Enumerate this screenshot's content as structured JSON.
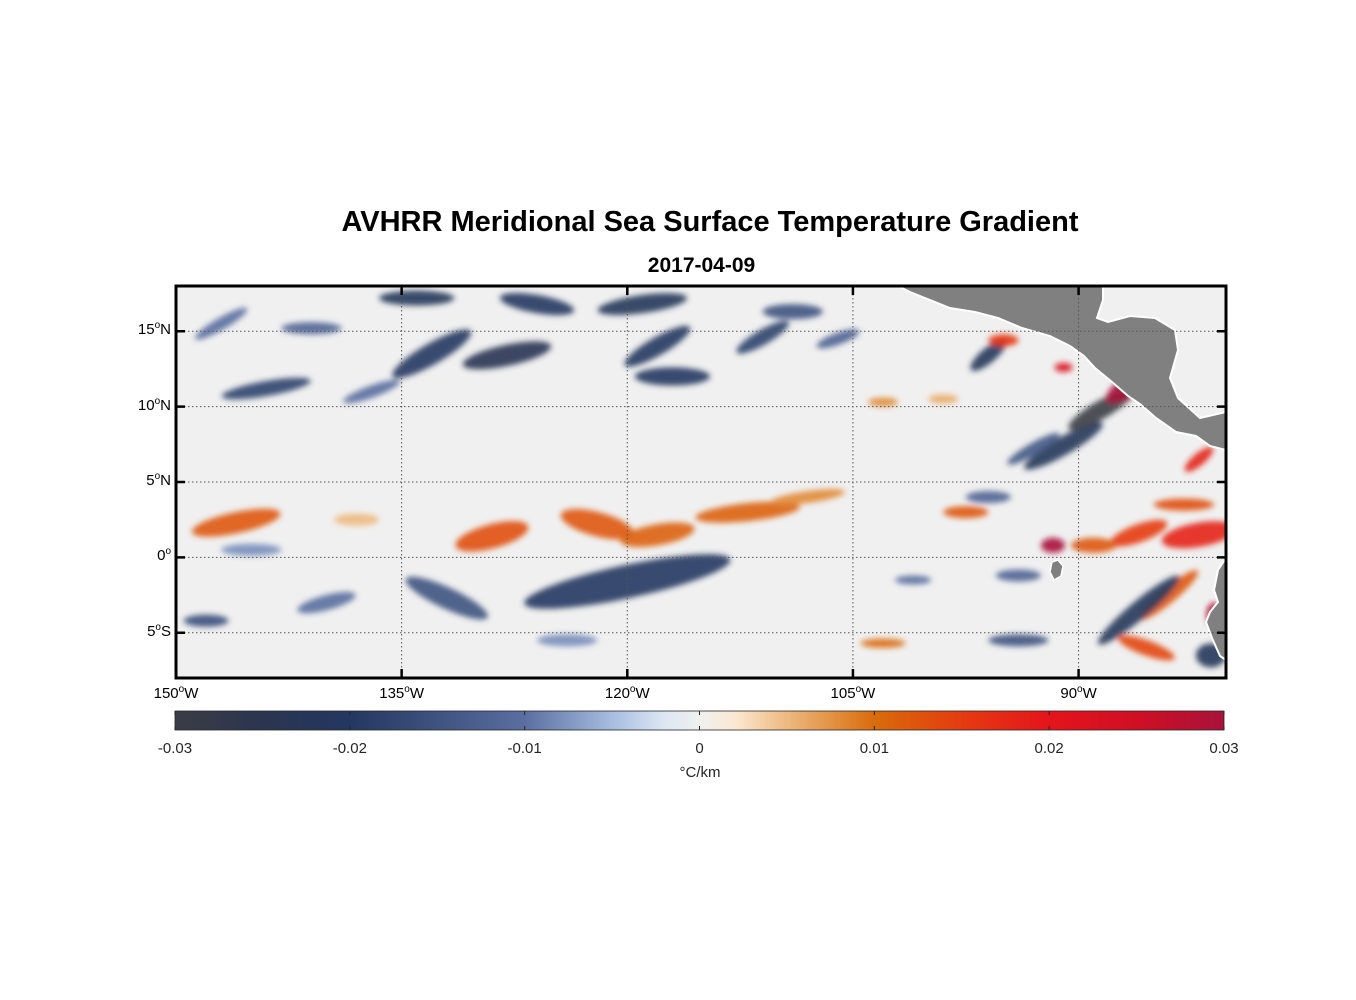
{
  "figure": {
    "title": "AVHRR Meridional Sea Surface Temperature Gradient",
    "subtitle": "2017-04-09"
  },
  "map": {
    "lat_range": [
      -8,
      18
    ],
    "lon_range": [
      -150,
      -80.2
    ],
    "lat_ticks": [
      {
        "value": 15,
        "num": "15",
        "hemi": "N"
      },
      {
        "value": 10,
        "num": "10",
        "hemi": "N"
      },
      {
        "value": 5,
        "num": "5",
        "hemi": "N"
      },
      {
        "value": 0,
        "num": "0",
        "hemi": ""
      },
      {
        "value": -5,
        "num": "5",
        "hemi": "S"
      }
    ],
    "lon_ticks": [
      {
        "value": -150,
        "num": "150",
        "hemi": "W"
      },
      {
        "value": -135,
        "num": "135",
        "hemi": "W"
      },
      {
        "value": -120,
        "num": "120",
        "hemi": "W"
      },
      {
        "value": -105,
        "num": "105",
        "hemi": "W"
      },
      {
        "value": -90,
        "num": "90",
        "hemi": "W"
      }
    ],
    "grid": "dotted",
    "land_color": "#808080",
    "gradient_features": [
      {
        "lon": -146,
        "lat": 2.3,
        "rx": 3,
        "ry": 0.7,
        "angle": -12,
        "value": 0.012
      },
      {
        "lon": -138,
        "lat": 2.5,
        "rx": 1.5,
        "ry": 0.4,
        "angle": 0,
        "value": 0.005
      },
      {
        "lon": -129,
        "lat": 1.4,
        "rx": 2.5,
        "ry": 0.8,
        "angle": -15,
        "value": 0.013
      },
      {
        "lon": -122,
        "lat": 2.2,
        "rx": 2.5,
        "ry": 0.8,
        "angle": 15,
        "value": 0.012
      },
      {
        "lon": -118,
        "lat": 1.5,
        "rx": 2.5,
        "ry": 0.7,
        "angle": -10,
        "value": 0.011
      },
      {
        "lon": -112,
        "lat": 3.0,
        "rx": 3.5,
        "ry": 0.6,
        "angle": -6,
        "value": 0.011
      },
      {
        "lon": -108,
        "lat": 4.0,
        "rx": 2.5,
        "ry": 0.4,
        "angle": -8,
        "value": 0.008
      },
      {
        "lon": -120,
        "lat": -1.6,
        "rx": 7,
        "ry": 1.1,
        "angle": -12,
        "value": -0.02
      },
      {
        "lon": -132,
        "lat": -2.7,
        "rx": 3,
        "ry": 0.7,
        "angle": 25,
        "value": -0.015
      },
      {
        "lon": -145,
        "lat": 0.5,
        "rx": 2,
        "ry": 0.4,
        "angle": 0,
        "value": -0.008
      },
      {
        "lon": -148,
        "lat": -4.2,
        "rx": 1.5,
        "ry": 0.4,
        "angle": 0,
        "value": -0.016
      },
      {
        "lon": -140,
        "lat": -3.0,
        "rx": 2,
        "ry": 0.5,
        "angle": -15,
        "value": -0.01
      },
      {
        "lon": -124,
        "lat": -5.5,
        "rx": 2,
        "ry": 0.4,
        "angle": 0,
        "value": -0.008
      },
      {
        "lon": -133,
        "lat": 13.5,
        "rx": 3,
        "ry": 0.7,
        "angle": -30,
        "value": -0.02
      },
      {
        "lon": -128,
        "lat": 13.4,
        "rx": 3,
        "ry": 0.7,
        "angle": -12,
        "value": -0.024
      },
      {
        "lon": -126,
        "lat": 16.8,
        "rx": 2.5,
        "ry": 0.6,
        "angle": 10,
        "value": -0.02
      },
      {
        "lon": -134,
        "lat": 17.2,
        "rx": 2.5,
        "ry": 0.5,
        "angle": 0,
        "value": -0.022
      },
      {
        "lon": -119,
        "lat": 16.8,
        "rx": 3,
        "ry": 0.6,
        "angle": -8,
        "value": -0.022
      },
      {
        "lon": -118,
        "lat": 14.0,
        "rx": 2.5,
        "ry": 0.6,
        "angle": -30,
        "value": -0.02
      },
      {
        "lon": -117,
        "lat": 12.0,
        "rx": 2.5,
        "ry": 0.6,
        "angle": 0,
        "value": -0.02
      },
      {
        "lon": -111,
        "lat": 14.6,
        "rx": 2,
        "ry": 0.5,
        "angle": -30,
        "value": -0.018
      },
      {
        "lon": -109,
        "lat": 16.3,
        "rx": 2,
        "ry": 0.5,
        "angle": 0,
        "value": -0.015
      },
      {
        "lon": -106,
        "lat": 14.5,
        "rx": 1.5,
        "ry": 0.4,
        "angle": -20,
        "value": -0.012
      },
      {
        "lon": -144,
        "lat": 11.2,
        "rx": 3,
        "ry": 0.5,
        "angle": -10,
        "value": -0.018
      },
      {
        "lon": -147,
        "lat": 15.5,
        "rx": 2,
        "ry": 0.4,
        "angle": -30,
        "value": -0.01
      },
      {
        "lon": -141,
        "lat": 15.2,
        "rx": 2,
        "ry": 0.4,
        "angle": 0,
        "value": -0.012
      },
      {
        "lon": -137,
        "lat": 11.0,
        "rx": 2,
        "ry": 0.4,
        "angle": -20,
        "value": -0.01
      },
      {
        "lon": -96,
        "lat": 13.4,
        "rx": 1.5,
        "ry": 0.5,
        "angle": -40,
        "value": -0.022
      },
      {
        "lon": -91,
        "lat": 7.4,
        "rx": 3,
        "ry": 0.6,
        "angle": -30,
        "value": -0.022
      },
      {
        "lon": -88.5,
        "lat": 9.8,
        "rx": 2.5,
        "ry": 0.6,
        "angle": -30,
        "value": -0.03
      },
      {
        "lon": -86.5,
        "lat": 11.5,
        "rx": 2,
        "ry": 0.7,
        "angle": -35,
        "value": 0.03
      },
      {
        "lon": -91,
        "lat": 12.6,
        "rx": 0.6,
        "ry": 0.3,
        "angle": 0,
        "value": 0.022
      },
      {
        "lon": -95,
        "lat": 14.4,
        "rx": 1,
        "ry": 0.4,
        "angle": 0,
        "value": 0.016
      },
      {
        "lon": -82,
        "lat": 6.5,
        "rx": 1.2,
        "ry": 0.4,
        "angle": -40,
        "value": 0.018
      },
      {
        "lon": -82,
        "lat": 1.5,
        "rx": 2.5,
        "ry": 0.8,
        "angle": -10,
        "value": 0.018
      },
      {
        "lon": -86,
        "lat": 1.6,
        "rx": 2,
        "ry": 0.6,
        "angle": -20,
        "value": 0.015
      },
      {
        "lon": -83,
        "lat": 3.5,
        "rx": 2,
        "ry": 0.4,
        "angle": 0,
        "value": 0.013
      },
      {
        "lon": -91.7,
        "lat": 0.8,
        "rx": 0.8,
        "ry": 0.5,
        "angle": 0,
        "value": 0.03
      },
      {
        "lon": -89,
        "lat": 0.8,
        "rx": 1.5,
        "ry": 0.5,
        "angle": 0,
        "value": 0.012
      },
      {
        "lon": -97.5,
        "lat": 3.0,
        "rx": 1.5,
        "ry": 0.4,
        "angle": 0,
        "value": 0.012
      },
      {
        "lon": -84,
        "lat": -2.5,
        "rx": 2.5,
        "ry": 0.5,
        "angle": -40,
        "value": 0.012
      },
      {
        "lon": -85.5,
        "lat": -6.0,
        "rx": 2,
        "ry": 0.5,
        "angle": 20,
        "value": 0.014
      },
      {
        "lon": -81,
        "lat": -3.8,
        "rx": 0.5,
        "ry": 0.8,
        "angle": 0,
        "value": 0.028
      },
      {
        "lon": -86,
        "lat": -3.5,
        "rx": 3.5,
        "ry": 0.6,
        "angle": -40,
        "value": -0.022
      },
      {
        "lon": -81.2,
        "lat": -6.5,
        "rx": 1,
        "ry": 0.8,
        "angle": 0,
        "value": -0.022
      },
      {
        "lon": -94,
        "lat": -5.5,
        "rx": 2,
        "ry": 0.4,
        "angle": 0,
        "value": -0.015
      },
      {
        "lon": -103,
        "lat": -5.7,
        "rx": 1.5,
        "ry": 0.3,
        "angle": 0,
        "value": 0.01
      },
      {
        "lon": -94,
        "lat": -1.2,
        "rx": 1.5,
        "ry": 0.4,
        "angle": 0,
        "value": -0.012
      },
      {
        "lon": -101,
        "lat": -1.5,
        "rx": 1.2,
        "ry": 0.3,
        "angle": 0,
        "value": -0.01
      },
      {
        "lon": -93,
        "lat": 7.2,
        "rx": 2,
        "ry": 0.4,
        "angle": -30,
        "value": -0.014
      },
      {
        "lon": -96,
        "lat": 4.0,
        "rx": 1.5,
        "ry": 0.4,
        "angle": 0,
        "value": -0.012
      },
      {
        "lon": -103,
        "lat": 10.3,
        "rx": 1,
        "ry": 0.3,
        "angle": 0,
        "value": 0.008
      },
      {
        "lon": -99,
        "lat": 10.5,
        "rx": 1,
        "ry": 0.3,
        "angle": 0,
        "value": 0.006
      }
    ]
  },
  "colorbar": {
    "min": -0.03,
    "max": 0.03,
    "ticks": [
      "-0.03",
      "-0.02",
      "-0.01",
      "0",
      "0.01",
      "0.02",
      "0.03"
    ],
    "unit": "°C/km",
    "colormap": [
      {
        "value": -0.03,
        "color": "#3a3d45"
      },
      {
        "value": -0.025,
        "color": "#2b3550"
      },
      {
        "value": -0.02,
        "color": "#233760"
      },
      {
        "value": -0.01,
        "color": "#5a6fa0"
      },
      {
        "value": -0.005,
        "color": "#a6bde0"
      },
      {
        "value": -0.002,
        "color": "#dde7f3"
      },
      {
        "value": 0,
        "color": "#f0f0f0"
      },
      {
        "value": 0.002,
        "color": "#fbe8d2"
      },
      {
        "value": 0.005,
        "color": "#eeb980"
      },
      {
        "value": 0.01,
        "color": "#d96c0a"
      },
      {
        "value": 0.015,
        "color": "#e53b10"
      },
      {
        "value": 0.02,
        "color": "#e4141b"
      },
      {
        "value": 0.025,
        "color": "#d00f24"
      },
      {
        "value": 0.03,
        "color": "#a8123a"
      }
    ]
  }
}
